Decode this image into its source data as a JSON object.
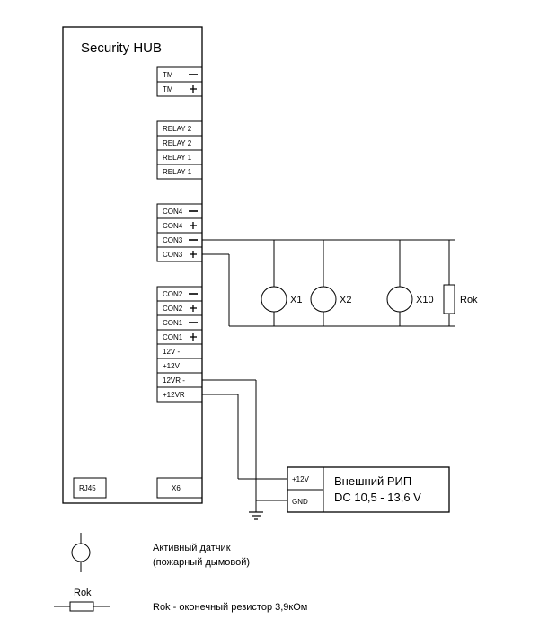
{
  "title": "Security HUB",
  "terminals": {
    "tm1": "TM",
    "tm2": "TM",
    "relay2a": "RELAY 2",
    "relay2b": "RELAY 2",
    "relay1a": "RELAY 1",
    "relay1b": "RELAY 1",
    "con4m": "CON4",
    "con4p": "CON4",
    "con3m": "CON3",
    "con3p": "CON3",
    "con2m": "CON2",
    "con2p": "CON2",
    "con1m": "CON1",
    "con1p": "CON1",
    "v12m": "12V -",
    "v12p": "+12V",
    "v12rm": "12VR -",
    "v12rp": "+12VR"
  },
  "bottomPorts": {
    "rj45": "RJ45",
    "x6": "X6"
  },
  "sensors": {
    "x1": "X1",
    "x2": "X2",
    "x10": "X10",
    "rok": "Rok"
  },
  "psu": {
    "v12": "+12V",
    "gnd": "GND",
    "title": "Внешний РИП",
    "voltage": "DC 10,5 - 13,6 V"
  },
  "legend": {
    "sensor_l1": "Активный датчик",
    "sensor_l2": "(пожарный дымовой)",
    "rok_label": "Rok",
    "rok_desc": "Rok - оконечный резистор 3,9кОм"
  },
  "style": {
    "stroke": "#000000",
    "bg": "#ffffff",
    "title_fontsize": 15,
    "terminal_fontsize": 8,
    "small_fontsize": 8,
    "label_fontsize": 11,
    "legend_fontsize": 11,
    "psu_fontsize": 13,
    "line_width": 1,
    "box_line_width": 1.3
  }
}
